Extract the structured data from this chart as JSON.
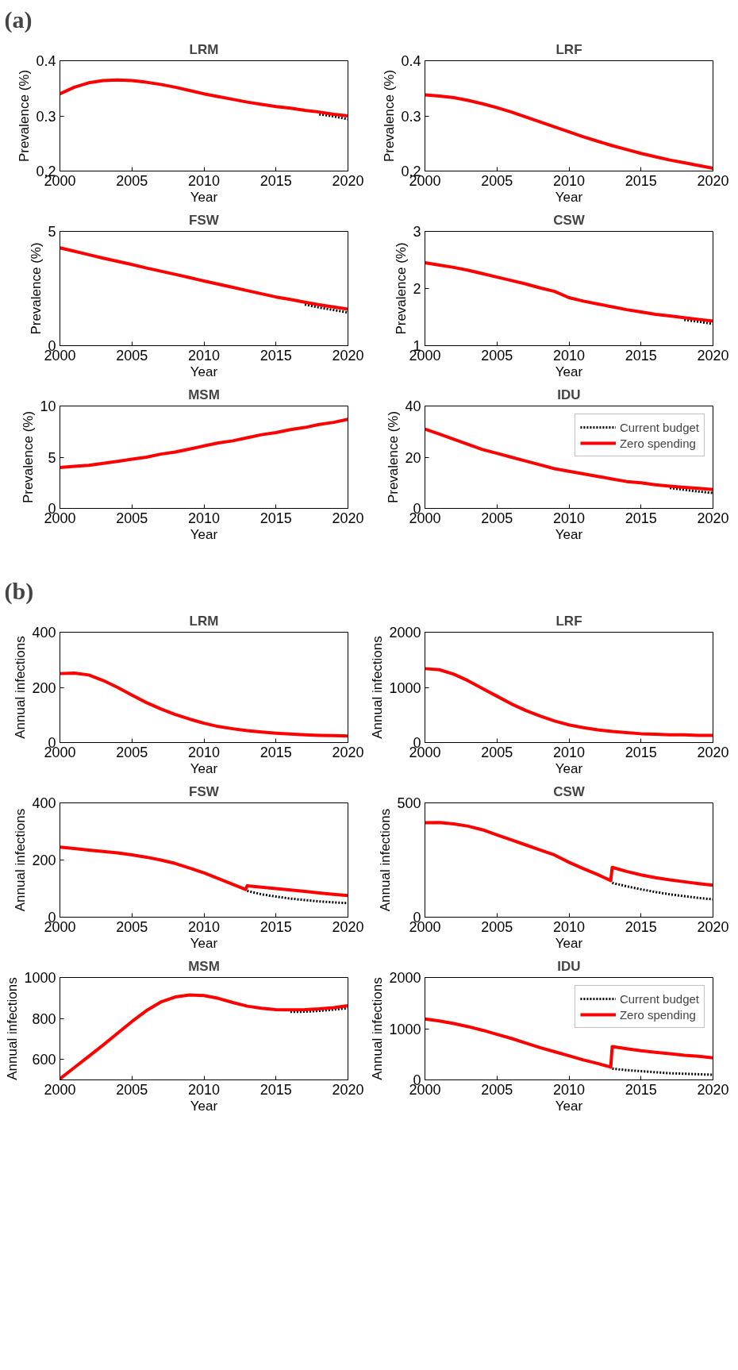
{
  "chart_data": [
    {
      "type": "line",
      "title": "LRM",
      "xlabel": "Year",
      "ylabel": "Prevalence (%)",
      "annotations": [
        "(a)"
      ],
      "x": [
        2000,
        2001,
        2002,
        2003,
        2004,
        2005,
        2006,
        2007,
        2008,
        2009,
        2010,
        2011,
        2012,
        2013,
        2014,
        2015,
        2016,
        2017,
        2018,
        2019,
        2020
      ],
      "xlim": [
        2000,
        2020
      ],
      "xticks": [
        2000,
        2005,
        2010,
        2015,
        2020
      ],
      "ylim": [
        0.2,
        0.4
      ],
      "yticks": [
        0.2,
        0.3,
        0.4
      ],
      "grid": false,
      "series": [
        {
          "color": "#000000",
          "line_style": "dotted",
          "values": [
            null,
            null,
            null,
            null,
            null,
            null,
            null,
            null,
            null,
            null,
            null,
            null,
            null,
            null,
            null,
            null,
            null,
            null,
            0.303,
            0.299,
            0.294
          ]
        },
        {
          "color": "#ff0000",
          "line_style": "solid",
          "values": [
            0.34,
            0.352,
            0.36,
            0.364,
            0.365,
            0.364,
            0.361,
            0.357,
            0.352,
            0.346,
            0.34,
            0.335,
            0.33,
            0.325,
            0.321,
            0.317,
            0.314,
            0.31,
            0.307,
            0.303,
            0.3
          ]
        }
      ]
    },
    {
      "type": "line",
      "title": "LRF",
      "xlabel": "Year",
      "ylabel": "Prevalence (%)",
      "x": [
        2000,
        2001,
        2002,
        2003,
        2004,
        2005,
        2006,
        2007,
        2008,
        2009,
        2010,
        2011,
        2012,
        2013,
        2014,
        2015,
        2016,
        2017,
        2018,
        2019,
        2020
      ],
      "xlim": [
        2000,
        2020
      ],
      "xticks": [
        2000,
        2005,
        2010,
        2015,
        2020
      ],
      "ylim": [
        0.2,
        0.4
      ],
      "yticks": [
        0.2,
        0.3,
        0.4
      ],
      "grid": false,
      "series": [
        {
          "color": "#ff0000",
          "line_style": "solid",
          "values": [
            0.338,
            0.336,
            0.333,
            0.328,
            0.322,
            0.315,
            0.307,
            0.298,
            0.289,
            0.28,
            0.271,
            0.262,
            0.254,
            0.246,
            0.239,
            0.232,
            0.226,
            0.22,
            0.215,
            0.21,
            0.205
          ]
        }
      ]
    },
    {
      "type": "line",
      "title": "FSW",
      "xlabel": "Year",
      "ylabel": "Prevalence (%)",
      "x": [
        2000,
        2001,
        2002,
        2003,
        2004,
        2005,
        2006,
        2007,
        2008,
        2009,
        2010,
        2011,
        2012,
        2013,
        2014,
        2015,
        2016,
        2017,
        2018,
        2019,
        2020
      ],
      "xlim": [
        2000,
        2020
      ],
      "xticks": [
        2000,
        2005,
        2010,
        2015,
        2020
      ],
      "ylim": [
        0,
        5
      ],
      "yticks": [
        0,
        5
      ],
      "grid": false,
      "series": [
        {
          "color": "#000000",
          "line_style": "dotted",
          "values": [
            null,
            null,
            null,
            null,
            null,
            null,
            null,
            null,
            null,
            null,
            null,
            null,
            null,
            null,
            null,
            null,
            null,
            1.8,
            1.67,
            1.56,
            1.45
          ]
        },
        {
          "color": "#ff0000",
          "line_style": "solid",
          "values": [
            4.28,
            4.13,
            3.98,
            3.83,
            3.69,
            3.55,
            3.4,
            3.26,
            3.12,
            2.98,
            2.83,
            2.69,
            2.55,
            2.41,
            2.27,
            2.13,
            2.02,
            1.9,
            1.79,
            1.69,
            1.6
          ]
        }
      ]
    },
    {
      "type": "line",
      "title": "CSW",
      "xlabel": "Year",
      "ylabel": "Prevalence (%)",
      "x": [
        2000,
        2001,
        2002,
        2003,
        2004,
        2005,
        2006,
        2007,
        2008,
        2009,
        2010,
        2011,
        2012,
        2013,
        2014,
        2015,
        2016,
        2017,
        2018,
        2019,
        2020
      ],
      "xlim": [
        2000,
        2020
      ],
      "xticks": [
        2000,
        2005,
        2010,
        2015,
        2020
      ],
      "ylim": [
        1,
        3
      ],
      "yticks": [
        1,
        2,
        3
      ],
      "grid": false,
      "series": [
        {
          "color": "#000000",
          "line_style": "dotted",
          "values": [
            null,
            null,
            null,
            null,
            null,
            null,
            null,
            null,
            null,
            null,
            null,
            null,
            null,
            null,
            null,
            null,
            null,
            null,
            1.45,
            1.42,
            1.38
          ]
        },
        {
          "color": "#ff0000",
          "line_style": "solid",
          "values": [
            2.45,
            2.41,
            2.37,
            2.32,
            2.26,
            2.2,
            2.14,
            2.08,
            2.01,
            1.95,
            1.84,
            1.78,
            1.73,
            1.68,
            1.63,
            1.59,
            1.55,
            1.52,
            1.49,
            1.46,
            1.43
          ]
        }
      ]
    },
    {
      "type": "line",
      "title": "MSM",
      "xlabel": "Year",
      "ylabel": "Prevalence (%)",
      "x": [
        2000,
        2001,
        2002,
        2003,
        2004,
        2005,
        2006,
        2007,
        2008,
        2009,
        2010,
        2011,
        2012,
        2013,
        2014,
        2015,
        2016,
        2017,
        2018,
        2019,
        2020
      ],
      "xlim": [
        2000,
        2020
      ],
      "xticks": [
        2000,
        2005,
        2010,
        2015,
        2020
      ],
      "ylim": [
        0,
        10
      ],
      "yticks": [
        0,
        5,
        10
      ],
      "grid": false,
      "series": [
        {
          "color": "#ff0000",
          "line_style": "solid",
          "values": [
            4.0,
            4.1,
            4.2,
            4.4,
            4.6,
            4.8,
            5.0,
            5.3,
            5.5,
            5.8,
            6.1,
            6.4,
            6.6,
            6.9,
            7.2,
            7.4,
            7.7,
            7.9,
            8.2,
            8.4,
            8.7
          ]
        }
      ]
    },
    {
      "type": "line",
      "title": "IDU",
      "xlabel": "Year",
      "ylabel": "Prevalence (%)",
      "x": [
        2000,
        2001,
        2002,
        2003,
        2004,
        2005,
        2006,
        2007,
        2008,
        2009,
        2010,
        2011,
        2012,
        2013,
        2014,
        2015,
        2016,
        2017,
        2018,
        2019,
        2020
      ],
      "xlim": [
        2000,
        2020
      ],
      "xticks": [
        2000,
        2005,
        2010,
        2015,
        2020
      ],
      "ylim": [
        0,
        40
      ],
      "yticks": [
        0,
        20,
        40
      ],
      "grid": false,
      "legend": "top right",
      "series": [
        {
          "name": "Current budget",
          "color": "#000000",
          "line_style": "dotted",
          "values": [
            null,
            null,
            null,
            null,
            null,
            null,
            null,
            null,
            null,
            null,
            null,
            null,
            null,
            null,
            null,
            null,
            null,
            8,
            7.3,
            6.6,
            6
          ]
        },
        {
          "name": "Zero spending",
          "color": "#ff0000",
          "line_style": "solid",
          "values": [
            31,
            29,
            27,
            25,
            23,
            21.5,
            20,
            18.5,
            17,
            15.5,
            14.5,
            13.5,
            12.5,
            11.5,
            10.5,
            10,
            9.2,
            8.7,
            8.2,
            7.8,
            7.4
          ]
        }
      ]
    },
    {
      "type": "line",
      "title": "LRM",
      "xlabel": "Year",
      "ylabel": "Annual infections",
      "annotations": [
        "(b)"
      ],
      "x": [
        2000,
        2001,
        2002,
        2003,
        2004,
        2005,
        2006,
        2007,
        2008,
        2009,
        2010,
        2011,
        2012,
        2013,
        2014,
        2015,
        2016,
        2017,
        2018,
        2019,
        2020
      ],
      "xlim": [
        2000,
        2020
      ],
      "xticks": [
        2000,
        2005,
        2010,
        2015,
        2020
      ],
      "ylim": [
        0,
        400
      ],
      "yticks": [
        0,
        200,
        400
      ],
      "grid": false,
      "series": [
        {
          "color": "#ff0000",
          "line_style": "solid",
          "values": [
            250,
            252,
            245,
            225,
            200,
            172,
            145,
            122,
            102,
            85,
            70,
            58,
            50,
            43,
            38,
            34,
            31,
            28,
            26,
            25,
            24
          ]
        }
      ]
    },
    {
      "type": "line",
      "title": "LRF",
      "xlabel": "Year",
      "ylabel": "Annual infections",
      "x": [
        2000,
        2001,
        2002,
        2003,
        2004,
        2005,
        2006,
        2007,
        2008,
        2009,
        2010,
        2011,
        2012,
        2013,
        2014,
        2015,
        2016,
        2017,
        2018,
        2019,
        2020
      ],
      "xlim": [
        2000,
        2020
      ],
      "xticks": [
        2000,
        2005,
        2010,
        2015,
        2020
      ],
      "ylim": [
        0,
        2000
      ],
      "yticks": [
        0,
        1000,
        2000
      ],
      "grid": false,
      "series": [
        {
          "color": "#ff0000",
          "line_style": "solid",
          "values": [
            1340,
            1320,
            1240,
            1120,
            980,
            840,
            700,
            580,
            480,
            390,
            320,
            270,
            230,
            200,
            180,
            160,
            150,
            140,
            140,
            130,
            130
          ]
        }
      ]
    },
    {
      "type": "line",
      "title": "FSW",
      "xlabel": "Year",
      "ylabel": "Annual infections",
      "x": [
        2000,
        2001,
        2002,
        2003,
        2004,
        2005,
        2006,
        2007,
        2008,
        2009,
        2010,
        2011,
        2012,
        2012.9,
        2013,
        2014,
        2015,
        2016,
        2017,
        2018,
        2019,
        2020
      ],
      "xlim": [
        2000,
        2020
      ],
      "xticks": [
        2000,
        2005,
        2010,
        2015,
        2020
      ],
      "ylim": [
        0,
        400
      ],
      "yticks": [
        0,
        200,
        400
      ],
      "grid": false,
      "series": [
        {
          "color": "#000000",
          "line_style": "dotted",
          "values": [
            null,
            null,
            null,
            null,
            null,
            null,
            null,
            null,
            null,
            null,
            null,
            null,
            null,
            null,
            92,
            80,
            72,
            65,
            60,
            55,
            52,
            49
          ]
        },
        {
          "color": "#ff0000",
          "line_style": "solid",
          "values": [
            245,
            240,
            235,
            230,
            225,
            218,
            210,
            200,
            188,
            172,
            155,
            135,
            115,
            97,
            110,
            105,
            100,
            95,
            90,
            85,
            80,
            76
          ]
        }
      ]
    },
    {
      "type": "line",
      "title": "CSW",
      "xlabel": "Year",
      "ylabel": "Annual infections",
      "x": [
        2000,
        2001,
        2002,
        2003,
        2004,
        2005,
        2006,
        2007,
        2008,
        2009,
        2010,
        2011,
        2012,
        2012.9,
        2013,
        2014,
        2015,
        2016,
        2017,
        2018,
        2019,
        2020
      ],
      "xlim": [
        2000,
        2020
      ],
      "xticks": [
        2000,
        2005,
        2010,
        2015,
        2020
      ],
      "ylim": [
        0,
        500
      ],
      "yticks": [
        0,
        500
      ],
      "grid": false,
      "series": [
        {
          "color": "#000000",
          "line_style": "dotted",
          "values": [
            null,
            null,
            null,
            null,
            null,
            null,
            null,
            null,
            null,
            null,
            null,
            null,
            null,
            null,
            150,
            135,
            122,
            110,
            100,
            92,
            84,
            78
          ]
        },
        {
          "color": "#ff0000",
          "line_style": "solid",
          "values": [
            413,
            414,
            408,
            398,
            382,
            360,
            338,
            316,
            294,
            272,
            240,
            212,
            186,
            160,
            218,
            200,
            185,
            173,
            163,
            155,
            147,
            140
          ]
        }
      ]
    },
    {
      "type": "line",
      "title": "MSM",
      "xlabel": "Year",
      "ylabel": "Annual infections",
      "x": [
        2000,
        2001,
        2002,
        2003,
        2004,
        2005,
        2006,
        2007,
        2008,
        2009,
        2010,
        2011,
        2012,
        2012.9,
        2013,
        2014,
        2015,
        2016,
        2017,
        2018,
        2019,
        2020
      ],
      "xlim": [
        2000,
        2020
      ],
      "xticks": [
        2000,
        2005,
        2010,
        2015,
        2020
      ],
      "ylim": [
        500,
        1000
      ],
      "yticks": [
        600,
        800,
        1000
      ],
      "grid": false,
      "series": [
        {
          "color": "#000000",
          "line_style": "dotted",
          "values": [
            null,
            null,
            null,
            null,
            null,
            null,
            null,
            null,
            null,
            null,
            null,
            null,
            null,
            null,
            null,
            null,
            null,
            832,
            833,
            837,
            843,
            850
          ]
        },
        {
          "color": "#ff0000",
          "line_style": "solid",
          "values": [
            505,
            560,
            615,
            670,
            728,
            785,
            838,
            880,
            905,
            915,
            912,
            898,
            878,
            862,
            860,
            850,
            843,
            842,
            843,
            847,
            853,
            862
          ]
        }
      ]
    },
    {
      "type": "line",
      "title": "IDU",
      "xlabel": "Year",
      "ylabel": "Annual infections",
      "x": [
        2000,
        2001,
        2002,
        2003,
        2004,
        2005,
        2006,
        2007,
        2008,
        2009,
        2010,
        2011,
        2012,
        2012.9,
        2013,
        2014,
        2015,
        2016,
        2017,
        2018,
        2019,
        2020
      ],
      "xlim": [
        2000,
        2020
      ],
      "xticks": [
        2000,
        2005,
        2010,
        2015,
        2020
      ],
      "ylim": [
        0,
        2000
      ],
      "yticks": [
        0,
        1000,
        2000
      ],
      "grid": false,
      "legend": "top right",
      "series": [
        {
          "name": "Current budget",
          "color": "#000000",
          "line_style": "dotted",
          "values": [
            null,
            null,
            null,
            null,
            null,
            null,
            null,
            null,
            null,
            null,
            null,
            null,
            null,
            null,
            220,
            190,
            170,
            150,
            130,
            120,
            110,
            100
          ]
        },
        {
          "name": "Zero spending",
          "color": "#ff0000",
          "line_style": "solid",
          "values": [
            1190,
            1150,
            1100,
            1040,
            970,
            890,
            810,
            720,
            630,
            550,
            470,
            390,
            320,
            250,
            650,
            610,
            570,
            540,
            510,
            480,
            460,
            430
          ]
        }
      ]
    }
  ]
}
